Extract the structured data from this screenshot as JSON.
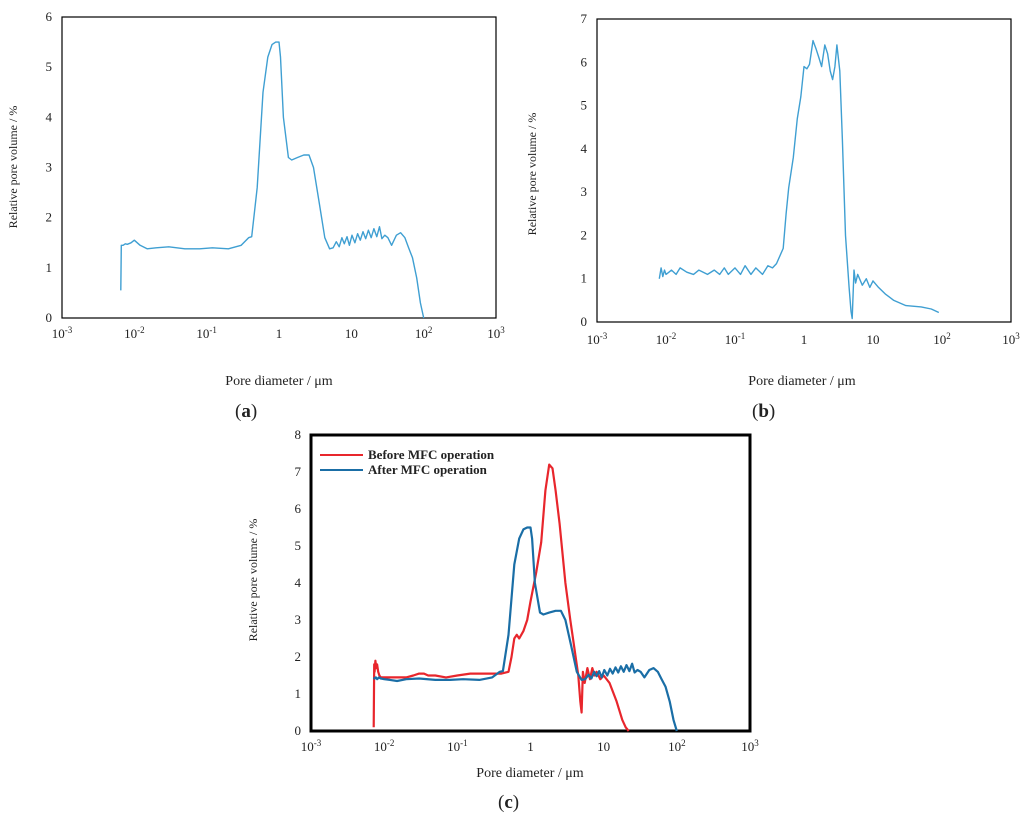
{
  "colors": {
    "blue": "#3f9fd2",
    "red": "#e8262c",
    "blue_c": "#1a6ea6"
  },
  "chart_data": [
    {
      "panel": "a",
      "panel_label": "a",
      "type": "line",
      "xscale": "log",
      "xlim": [
        0.001,
        1000
      ],
      "ylim": [
        0,
        6
      ],
      "x_ticks": [
        {
          "base": "10",
          "exp": "-3"
        },
        {
          "base": "10",
          "exp": "-2"
        },
        {
          "base": "10",
          "exp": "-1"
        },
        {
          "base": "1",
          "exp": ""
        },
        {
          "base": "10",
          "exp": ""
        },
        {
          "base": "10",
          "exp": "2"
        },
        {
          "base": "10",
          "exp": "3"
        }
      ],
      "y_ticks": [
        "0",
        "1",
        "2",
        "3",
        "4",
        "5",
        "6"
      ],
      "xlabel": "Pore diameter / μm",
      "ylabel": "Relative pore volume / %",
      "series": [
        {
          "name": "pore volume",
          "x": [
            0.0065,
            0.0066,
            0.007,
            0.0075,
            0.008,
            0.009,
            0.01,
            0.012,
            0.015,
            0.02,
            0.03,
            0.05,
            0.08,
            0.12,
            0.2,
            0.3,
            0.38,
            0.42,
            0.5,
            0.6,
            0.7,
            0.8,
            0.9,
            1.0,
            1.05,
            1.15,
            1.35,
            1.5,
            1.8,
            2.2,
            2.6,
            3.0,
            3.6,
            4.3,
            5.0,
            5.6,
            6.2,
            6.8,
            7.4,
            8.0,
            8.7,
            9.4,
            10.2,
            11.2,
            12.2,
            13.3,
            14.5,
            15.8,
            17.2,
            18.8,
            20.5,
            22.5,
            24.5,
            26.5,
            29,
            32,
            36,
            42,
            48,
            55,
            62,
            70,
            80,
            90,
            100
          ],
          "y": [
            0.55,
            1.45,
            1.45,
            1.48,
            1.47,
            1.5,
            1.55,
            1.45,
            1.38,
            1.4,
            1.42,
            1.38,
            1.38,
            1.4,
            1.38,
            1.45,
            1.6,
            1.62,
            2.6,
            4.5,
            5.2,
            5.45,
            5.5,
            5.5,
            5.2,
            4.0,
            3.2,
            3.15,
            3.2,
            3.25,
            3.25,
            3.0,
            2.3,
            1.6,
            1.38,
            1.4,
            1.52,
            1.42,
            1.6,
            1.48,
            1.62,
            1.45,
            1.65,
            1.5,
            1.68,
            1.55,
            1.72,
            1.58,
            1.75,
            1.6,
            1.78,
            1.62,
            1.82,
            1.58,
            1.65,
            1.6,
            1.45,
            1.65,
            1.7,
            1.6,
            1.4,
            1.2,
            0.8,
            0.3,
            0.0
          ]
        }
      ]
    },
    {
      "panel": "b",
      "panel_label": "b",
      "type": "line",
      "xscale": "log",
      "xlim": [
        0.001,
        1000
      ],
      "ylim": [
        0,
        7
      ],
      "x_ticks": [
        {
          "base": "10",
          "exp": "-3"
        },
        {
          "base": "10",
          "exp": "-2"
        },
        {
          "base": "10",
          "exp": "-1"
        },
        {
          "base": "1",
          "exp": ""
        },
        {
          "base": "10",
          "exp": ""
        },
        {
          "base": "10",
          "exp": "2"
        },
        {
          "base": "10",
          "exp": "3"
        }
      ],
      "y_ticks": [
        "0",
        "1",
        "2",
        "3",
        "4",
        "5",
        "6",
        "7"
      ],
      "xlabel": "Pore diameter / μm",
      "ylabel": "Relative pore volume / %",
      "series": [
        {
          "name": "pore volume",
          "x": [
            0.008,
            0.0085,
            0.009,
            0.0095,
            0.01,
            0.011,
            0.012,
            0.014,
            0.016,
            0.02,
            0.025,
            0.03,
            0.04,
            0.05,
            0.06,
            0.07,
            0.08,
            0.1,
            0.12,
            0.14,
            0.17,
            0.2,
            0.25,
            0.3,
            0.35,
            0.4,
            0.5,
            0.55,
            0.6,
            0.7,
            0.8,
            0.9,
            1.0,
            1.1,
            1.2,
            1.35,
            1.5,
            1.65,
            1.8,
            2.0,
            2.2,
            2.4,
            2.6,
            2.8,
            3.0,
            3.3,
            3.6,
            4.0,
            4.5,
            4.8,
            5.0,
            5.3,
            5.6,
            6.0,
            7,
            8,
            9,
            10,
            12,
            15,
            20,
            30,
            50,
            70,
            90
          ],
          "y": [
            1.0,
            1.25,
            1.05,
            1.2,
            1.1,
            1.15,
            1.2,
            1.1,
            1.25,
            1.15,
            1.1,
            1.2,
            1.1,
            1.2,
            1.1,
            1.25,
            1.1,
            1.25,
            1.1,
            1.3,
            1.1,
            1.25,
            1.1,
            1.3,
            1.25,
            1.35,
            1.7,
            2.5,
            3.1,
            3.8,
            4.7,
            5.2,
            5.9,
            5.85,
            5.95,
            6.5,
            6.3,
            6.1,
            5.9,
            6.4,
            6.2,
            5.8,
            5.6,
            5.9,
            6.4,
            5.8,
            4.2,
            2.0,
            0.8,
            0.25,
            0.08,
            1.2,
            0.9,
            1.1,
            0.85,
            1.0,
            0.8,
            0.95,
            0.8,
            0.65,
            0.5,
            0.38,
            0.35,
            0.3,
            0.22
          ]
        }
      ]
    },
    {
      "panel": "c",
      "panel_label": "c",
      "type": "line",
      "xscale": "log",
      "xlim": [
        0.001,
        1000
      ],
      "ylim": [
        0,
        8
      ],
      "x_ticks": [
        {
          "base": "10",
          "exp": "-3"
        },
        {
          "base": "10",
          "exp": "-2"
        },
        {
          "base": "10",
          "exp": "-1"
        },
        {
          "base": "1",
          "exp": ""
        },
        {
          "base": "10",
          "exp": ""
        },
        {
          "base": "10",
          "exp": "2"
        },
        {
          "base": "10",
          "exp": "3"
        }
      ],
      "y_ticks": [
        "0",
        "1",
        "2",
        "3",
        "4",
        "5",
        "6",
        "7",
        "8"
      ],
      "xlabel": "Pore diameter / μm",
      "ylabel": "Relative pore volume / %",
      "legend": [
        "Before MFC operation",
        "After MFC operation"
      ],
      "series": [
        {
          "name": "Before MFC operation",
          "color_key": "red",
          "x": [
            0.0072,
            0.0073,
            0.0074,
            0.0076,
            0.0078,
            0.008,
            0.0083,
            0.0086,
            0.009,
            0.0095,
            0.01,
            0.012,
            0.015,
            0.02,
            0.025,
            0.03,
            0.035,
            0.04,
            0.05,
            0.07,
            0.1,
            0.15,
            0.2,
            0.3,
            0.4,
            0.5,
            0.55,
            0.6,
            0.65,
            0.7,
            0.8,
            0.9,
            1.0,
            1.2,
            1.4,
            1.6,
            1.8,
            2.0,
            2.2,
            2.5,
            3.0,
            3.5,
            4.0,
            4.5,
            4.8,
            5.0,
            5.2,
            5.5,
            6,
            6.5,
            7,
            7.5,
            8,
            9,
            10,
            12,
            15,
            18,
            20,
            22
          ],
          "y": [
            0.1,
            1.8,
            1.6,
            1.9,
            1.7,
            1.8,
            1.6,
            1.5,
            1.45,
            1.45,
            1.45,
            1.45,
            1.45,
            1.45,
            1.5,
            1.55,
            1.55,
            1.5,
            1.5,
            1.45,
            1.5,
            1.55,
            1.55,
            1.55,
            1.55,
            1.6,
            2.0,
            2.5,
            2.6,
            2.5,
            2.7,
            3.0,
            3.5,
            4.3,
            5.1,
            6.5,
            7.2,
            7.1,
            6.5,
            5.6,
            4.0,
            3.0,
            2.2,
            1.5,
            0.8,
            0.5,
            1.6,
            1.3,
            1.7,
            1.4,
            1.7,
            1.5,
            1.6,
            1.4,
            1.5,
            1.3,
            0.8,
            0.3,
            0.1,
            0.0
          ]
        },
        {
          "name": "After MFC operation",
          "color_key": "blue_c",
          "x": [
            0.0072,
            0.0074,
            0.0077,
            0.008,
            0.0085,
            0.009,
            0.01,
            0.012,
            0.015,
            0.02,
            0.03,
            0.05,
            0.08,
            0.12,
            0.2,
            0.3,
            0.38,
            0.42,
            0.5,
            0.6,
            0.7,
            0.8,
            0.9,
            1.0,
            1.05,
            1.15,
            1.35,
            1.5,
            1.8,
            2.2,
            2.6,
            3.0,
            3.6,
            4.3,
            5.0,
            5.6,
            6.2,
            6.8,
            7.4,
            8.0,
            8.7,
            9.4,
            10.2,
            11.2,
            12.2,
            13.3,
            14.5,
            15.8,
            17.2,
            18.8,
            20.5,
            22.5,
            24.5,
            26.5,
            29,
            32,
            36,
            42,
            48,
            55,
            62,
            70,
            80,
            90,
            100
          ],
          "y": [
            1.45,
            1.42,
            1.45,
            1.4,
            1.45,
            1.42,
            1.4,
            1.38,
            1.35,
            1.4,
            1.42,
            1.38,
            1.38,
            1.4,
            1.38,
            1.45,
            1.6,
            1.62,
            2.6,
            4.5,
            5.2,
            5.45,
            5.5,
            5.5,
            5.2,
            4.0,
            3.2,
            3.15,
            3.2,
            3.25,
            3.25,
            3.0,
            2.3,
            1.6,
            1.38,
            1.4,
            1.52,
            1.42,
            1.6,
            1.48,
            1.62,
            1.45,
            1.65,
            1.5,
            1.68,
            1.55,
            1.72,
            1.58,
            1.75,
            1.6,
            1.78,
            1.62,
            1.82,
            1.58,
            1.65,
            1.6,
            1.45,
            1.65,
            1.7,
            1.6,
            1.4,
            1.2,
            0.8,
            0.3,
            0.0
          ]
        }
      ]
    }
  ]
}
